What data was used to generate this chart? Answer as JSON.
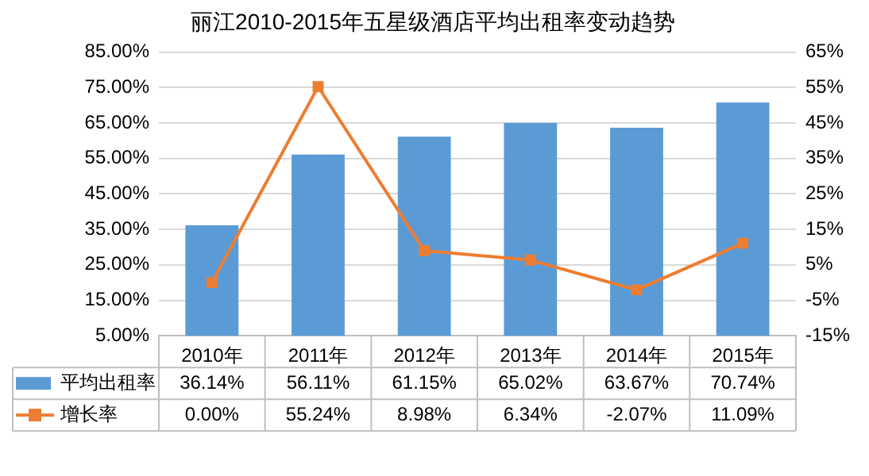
{
  "chart_data": {
    "type": "bar",
    "title": "丽江2010-2015年五星级酒店平均出租率变动趋势",
    "categories": [
      "2010年",
      "2011年",
      "2012年",
      "2013年",
      "2014年",
      "2015年"
    ],
    "series": [
      {
        "name": "平均出租率",
        "color": "#5b9bd5",
        "values": [
          36.14,
          56.11,
          61.15,
          65.02,
          63.67,
          70.74
        ],
        "value_labels": [
          "36.14%",
          "56.11%",
          "61.15%",
          "65.02%",
          "63.67%",
          "70.74%"
        ]
      },
      {
        "name": "增长率",
        "type": "line",
        "axis": "y2",
        "color": "#ed7d31",
        "marker": "square",
        "values": [
          0,
          55.24,
          8.98,
          6.34,
          -2.07,
          11.09
        ],
        "value_labels": [
          "0.00%",
          "55.24%",
          "8.98%",
          "6.34%",
          "-2.07%",
          "11.09%"
        ]
      }
    ],
    "ylim": [
      5,
      85
    ],
    "yticks": [
      {
        "value": 5,
        "label": "5.00%"
      },
      {
        "value": 15,
        "label": "15.00%"
      },
      {
        "value": 25,
        "label": "25.00%"
      },
      {
        "value": 35,
        "label": "35.00%"
      },
      {
        "value": 45,
        "label": "45.00%"
      },
      {
        "value": 55,
        "label": "55.00%"
      },
      {
        "value": 65,
        "label": "65.00%"
      },
      {
        "value": 75,
        "label": "75.00%"
      },
      {
        "value": 85,
        "label": "85.00%"
      }
    ],
    "y2lim": [
      -15,
      65
    ],
    "y2ticks": [
      {
        "value": -15,
        "label": "-15%"
      },
      {
        "value": -5,
        "label": "-5%"
      },
      {
        "value": 5,
        "label": "5%"
      },
      {
        "value": 15,
        "label": "15%"
      },
      {
        "value": 25,
        "label": "25%"
      },
      {
        "value": 35,
        "label": "35%"
      },
      {
        "value": 45,
        "label": "45%"
      },
      {
        "value": 55,
        "label": "55%"
      },
      {
        "value": 65,
        "label": "65%"
      }
    ],
    "grid": "y",
    "legend": "bottom left"
  }
}
